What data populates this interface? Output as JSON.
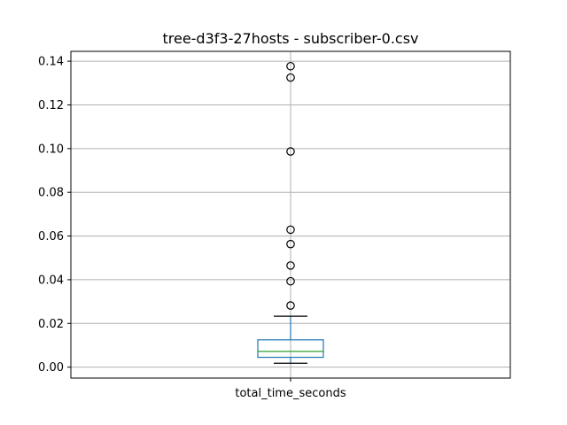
{
  "chart_data": {
    "type": "box",
    "title": "tree-d3f3-27hosts - subscriber-0.csv",
    "xlabel": "",
    "ylabel": "",
    "categories": [
      "total_time_seconds"
    ],
    "ylim": [
      -0.005,
      0.1445
    ],
    "yticks": [
      0.0,
      0.02,
      0.04,
      0.06,
      0.08,
      0.1,
      0.12,
      0.14
    ],
    "ytick_labels": [
      "0.00",
      "0.02",
      "0.04",
      "0.06",
      "0.08",
      "0.10",
      "0.12",
      "0.14"
    ],
    "grid": true,
    "series": [
      {
        "stats": {
          "whisker_low": 0.0018,
          "q1": 0.0045,
          "median": 0.0072,
          "q3": 0.0125,
          "whisker_high": 0.0233
        },
        "outliers": [
          0.0282,
          0.0393,
          0.0465,
          0.0563,
          0.0629,
          0.0987,
          0.1325,
          0.1377
        ]
      }
    ]
  },
  "colors": {
    "box": "#1f77b4",
    "median": "#2ca02c",
    "whisker": "#000000",
    "grid": "#b0b0b0",
    "outlier_edge": "#000000"
  }
}
